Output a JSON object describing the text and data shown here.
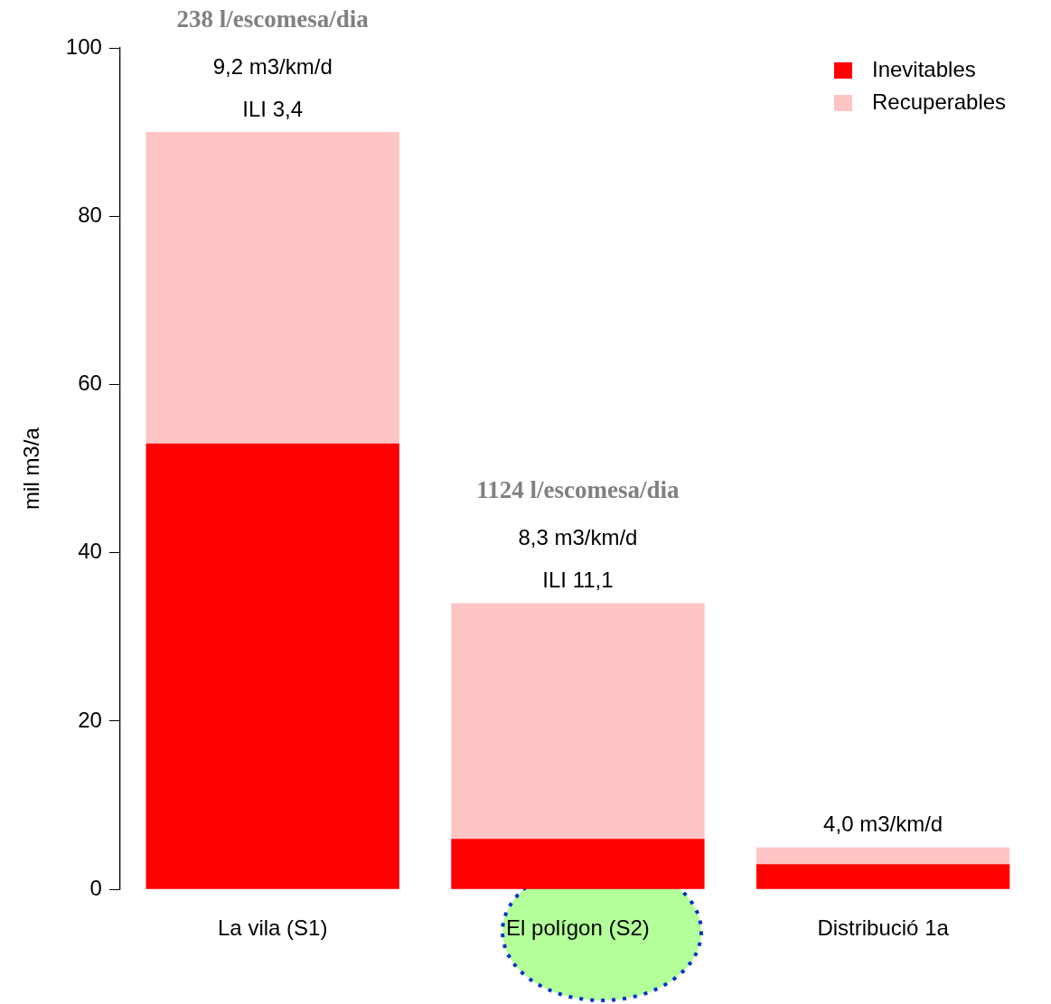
{
  "chart_data": {
    "type": "bar",
    "ylabel": "mil m3/a",
    "categories": [
      "La vila (S1)",
      "El polígon (S2)",
      "Distribució 1a"
    ],
    "series": [
      {
        "name": "Inevitables",
        "color": "#ff0000",
        "values": [
          53,
          6,
          3
        ]
      },
      {
        "name": "Recuperables",
        "color": "#ffc4c4",
        "values": [
          37,
          28,
          2
        ]
      }
    ],
    "stacked": true,
    "ylim": [
      0,
      100
    ],
    "yticks": [
      0,
      20,
      40,
      60,
      80,
      100
    ],
    "grid": false,
    "legend": "top right",
    "annotations": [
      "238 l/escomesa/dia",
      {
        "text": "9,2 m3/km/d",
        "x": "La vila (S1)",
        "y": 90
      },
      {
        "text": "ILI 3,4",
        "x": "La vila (S1)",
        "y": 90
      },
      "1124 l/escomesa/dia",
      {
        "text": "8,3 m3/km/d",
        "x": "El polígon (S2)",
        "y": 34
      },
      {
        "text": "ILI 11,1",
        "x": "El polígon (S2)",
        "y": 34
      },
      {
        "text": "4,0 m3/km/d",
        "x": "Distribució 1a",
        "y": 5
      }
    ]
  }
}
